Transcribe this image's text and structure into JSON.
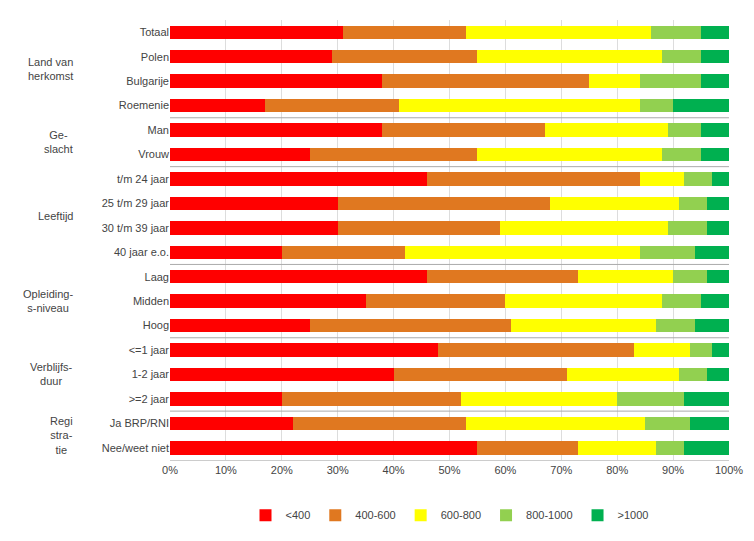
{
  "chart_data": {
    "type": "bar",
    "orientation": "horizontal",
    "stacked": true,
    "categories": [
      "Totaal",
      "Polen",
      "Bulgarije",
      "Roemenie",
      "Man",
      "Vrouw",
      "t/m 24 jaar",
      "25 t/m 29 jaar",
      "30 t/m 39 jaar",
      "40 jaar e.o.",
      "Laag",
      "Midden",
      "Hoog",
      "<=1 jaar",
      "1-2 jaar",
      ">=2 jaar",
      "Ja BRP/RNI",
      "Nee/weet niet"
    ],
    "series": [
      {
        "name": "<400",
        "color": "#FF0000",
        "values": [
          31,
          29,
          38,
          17,
          38,
          25,
          46,
          30,
          30,
          20,
          46,
          35,
          25,
          48,
          40,
          20,
          22,
          55
        ]
      },
      {
        "name": "400-600",
        "color": "#E07820",
        "values": [
          22,
          26,
          37,
          24,
          29,
          30,
          38,
          38,
          29,
          22,
          27,
          25,
          36,
          35,
          31,
          32,
          31,
          18
        ]
      },
      {
        "name": "600-800",
        "color": "#FFFF00",
        "values": [
          33,
          33,
          9,
          43,
          22,
          33,
          8,
          23,
          30,
          42,
          17,
          28,
          26,
          10,
          20,
          28,
          32,
          14
        ]
      },
      {
        "name": "800-1000",
        "color": "#92D050",
        "values": [
          9,
          7,
          11,
          6,
          6,
          7,
          5,
          5,
          7,
          10,
          6,
          7,
          7,
          4,
          5,
          12,
          8,
          5
        ]
      },
      {
        "name": ">1000",
        "color": "#00B050",
        "values": [
          5,
          5,
          5,
          10,
          5,
          5,
          3,
          4,
          4,
          6,
          4,
          5,
          6,
          3,
          4,
          8,
          7,
          8
        ]
      }
    ],
    "xlim": [
      0,
      100
    ],
    "xticks": [
      {
        "value": 0,
        "label": "0%"
      },
      {
        "value": 10,
        "label": "10%"
      },
      {
        "value": 20,
        "label": "20%"
      },
      {
        "value": 30,
        "label": "30%"
      },
      {
        "value": 40,
        "label": "40%"
      },
      {
        "value": 50,
        "label": "50%"
      },
      {
        "value": 60,
        "label": "60%"
      },
      {
        "value": 70,
        "label": "70%"
      },
      {
        "value": 80,
        "label": "80%"
      },
      {
        "value": 90,
        "label": "90%"
      },
      {
        "value": 100,
        "label": "100%"
      }
    ],
    "grid": true,
    "legend": "bottom",
    "annotations": [
      {
        "text": "Land van\nherkomst",
        "from": "Totaal",
        "to": "Roemenie"
      },
      {
        "text": "Ge-\nslacht",
        "from": "Man",
        "to": "Vrouw"
      },
      {
        "text": "Leeftijd",
        "from": "t/m 24 jaar",
        "to": "40 jaar e.o."
      },
      {
        "text": "Opleiding-\ns-niveau",
        "from": "Laag",
        "to": "Hoog"
      },
      {
        "text": "Verblijfs-\nduur",
        "from": "<=1 jaar",
        "to": ">=2 jaar"
      },
      {
        "text": "Regi\nstra-\ntie",
        "from": "Ja BRP/RNI",
        "to": "Nee/weet niet"
      }
    ]
  }
}
